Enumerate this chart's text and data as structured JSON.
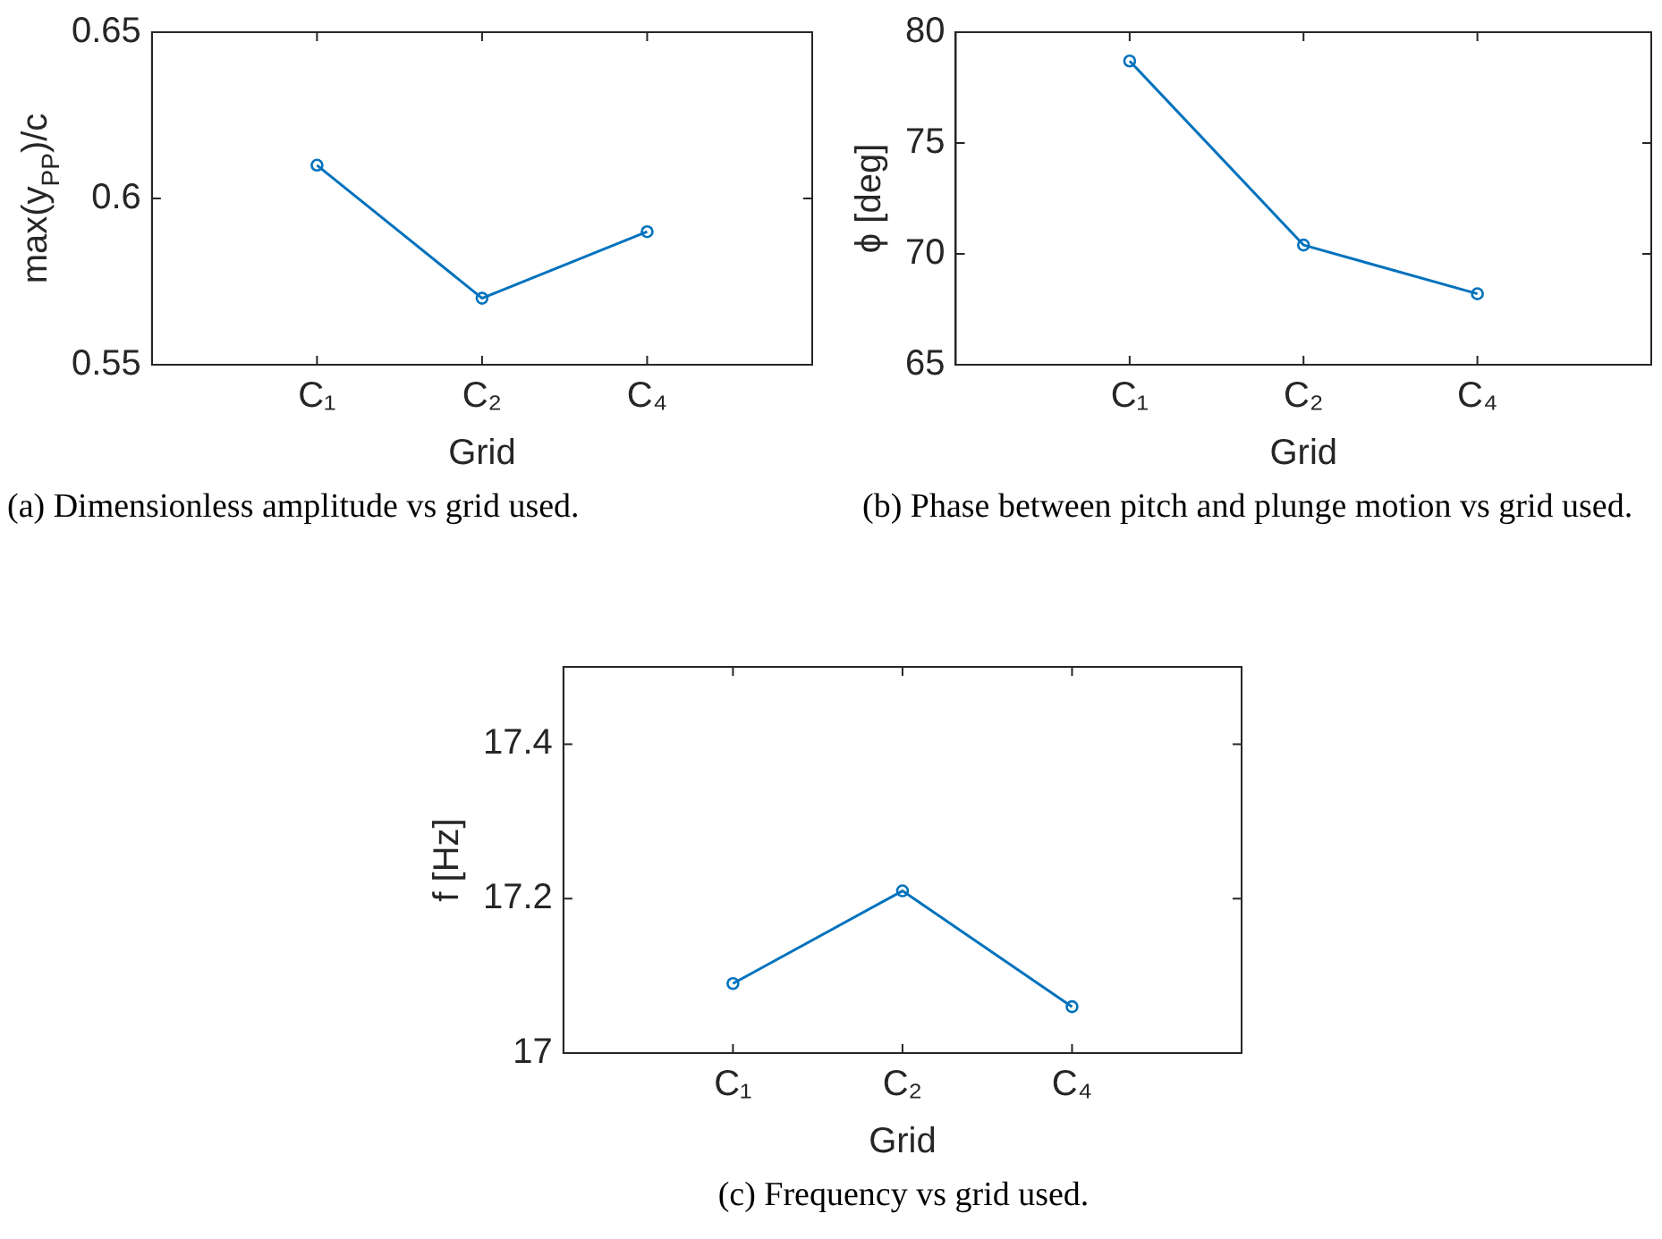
{
  "chart_data": [
    {
      "type": "line",
      "xlabel": "Grid",
      "ylabel": "max(y$_{PP}$)/c",
      "annotations": [
        "(a) Dimensionless amplitude vs grid used."
      ],
      "categories": [
        "C₁",
        "C₂",
        "C₄"
      ],
      "ylim": [
        0.55,
        0.65
      ],
      "yticks": [
        0.55,
        0.6,
        0.65
      ],
      "marker": "circle",
      "series": [
        {
          "color": "#0072bd",
          "values": [
            0.61,
            0.57,
            0.59
          ]
        }
      ]
    },
    {
      "type": "line",
      "xlabel": "Grid",
      "ylabel": "ϕ [deg]",
      "annotations": [
        "(b) Phase between pitch and plunge motion vs grid used."
      ],
      "categories": [
        "C₁",
        "C₂",
        "C₄"
      ],
      "ylim": [
        65,
        80
      ],
      "yticks": [
        65,
        70,
        75,
        80
      ],
      "marker": "circle",
      "series": [
        {
          "color": "#0072bd",
          "values": [
            78.7,
            70.4,
            68.2
          ]
        }
      ]
    },
    {
      "type": "line",
      "xlabel": "Grid",
      "ylabel": "f [Hz]",
      "annotations": [
        "(c) Frequency vs grid used."
      ],
      "categories": [
        "C₁",
        "C₂",
        "C₄"
      ],
      "ylim": [
        17,
        17.5
      ],
      "yticks": [
        17,
        17.2,
        17.4
      ],
      "marker": "circle",
      "series": [
        {
          "color": "#0072bd",
          "values": [
            17.09,
            17.21,
            17.06
          ]
        }
      ]
    }
  ]
}
